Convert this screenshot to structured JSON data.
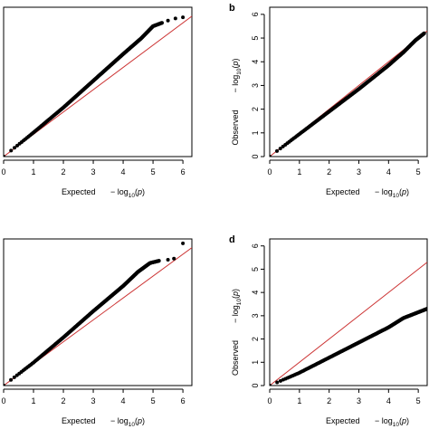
{
  "chart_data": [
    {
      "type": "scatter",
      "panel_label": "",
      "xlabel": "Expected",
      "ylabel": "",
      "axis_unit": "−log10(p)",
      "x_ticks": [
        0,
        1,
        2,
        3,
        4,
        5,
        6
      ],
      "y_ticks": [],
      "xlim": [
        0,
        6.3
      ],
      "ylim": [
        0,
        6.7
      ],
      "reference_line": "y = x",
      "reference_line_color": "#cc3333",
      "point_color": "#000000",
      "curve": [
        [
          0,
          0
        ],
        [
          1,
          1.08
        ],
        [
          2,
          2.2
        ],
        [
          3,
          3.4
        ],
        [
          4,
          4.6
        ],
        [
          4.6,
          5.3
        ],
        [
          5.0,
          5.85
        ],
        [
          5.3,
          6.0
        ]
      ],
      "outliers": [
        [
          5.5,
          6.1
        ],
        [
          5.75,
          6.2
        ],
        [
          6.0,
          6.25
        ]
      ]
    },
    {
      "type": "scatter",
      "panel_label": "b",
      "xlabel": "Expected",
      "ylabel": "Observed",
      "axis_unit": "−log10(p)",
      "x_ticks": [
        0,
        1,
        2,
        3,
        4,
        5
      ],
      "y_ticks": [
        0,
        1,
        2,
        3,
        4,
        5,
        6
      ],
      "xlim": [
        0,
        5.3
      ],
      "ylim": [
        0,
        6.3
      ],
      "reference_line": "y = x",
      "reference_line_color": "#cc3333",
      "point_color": "#000000",
      "curve": [
        [
          0,
          0
        ],
        [
          1,
          0.95
        ],
        [
          2,
          1.9
        ],
        [
          3,
          2.85
        ],
        [
          4,
          3.85
        ],
        [
          4.5,
          4.4
        ],
        [
          4.9,
          4.9
        ],
        [
          5.2,
          5.2
        ]
      ],
      "outliers": []
    },
    {
      "type": "scatter",
      "panel_label": "",
      "xlabel": "Expected",
      "ylabel": "",
      "axis_unit": "−log10(p)",
      "x_ticks": [
        0,
        1,
        2,
        3,
        4,
        5,
        6
      ],
      "y_ticks": [],
      "xlim": [
        0,
        6.3
      ],
      "ylim": [
        0,
        6.7
      ],
      "reference_line": "y = x",
      "reference_line_color": "#cc3333",
      "point_color": "#000000",
      "curve": [
        [
          0,
          0
        ],
        [
          1,
          1.05
        ],
        [
          2,
          2.2
        ],
        [
          3,
          3.4
        ],
        [
          4,
          4.55
        ],
        [
          4.5,
          5.2
        ],
        [
          4.9,
          5.6
        ],
        [
          5.2,
          5.7
        ]
      ],
      "outliers": [
        [
          5.5,
          5.75
        ],
        [
          5.7,
          5.8
        ],
        [
          6.0,
          6.5
        ]
      ]
    },
    {
      "type": "scatter",
      "panel_label": "d",
      "xlabel": "Expected",
      "ylabel": "Observed",
      "axis_unit": "−log10(p)",
      "x_ticks": [
        0,
        1,
        2,
        3,
        4,
        5
      ],
      "y_ticks": [
        0,
        1,
        2,
        3,
        4,
        5,
        6
      ],
      "xlim": [
        0,
        5.3
      ],
      "ylim": [
        0,
        6.3
      ],
      "reference_line": "y = x",
      "reference_line_color": "#cc3333",
      "point_color": "#000000",
      "curve": [
        [
          0,
          0
        ],
        [
          1,
          0.55
        ],
        [
          2,
          1.2
        ],
        [
          3,
          1.85
        ],
        [
          4,
          2.5
        ],
        [
          4.5,
          2.9
        ],
        [
          5.0,
          3.15
        ],
        [
          5.3,
          3.3
        ]
      ],
      "outliers": []
    }
  ]
}
